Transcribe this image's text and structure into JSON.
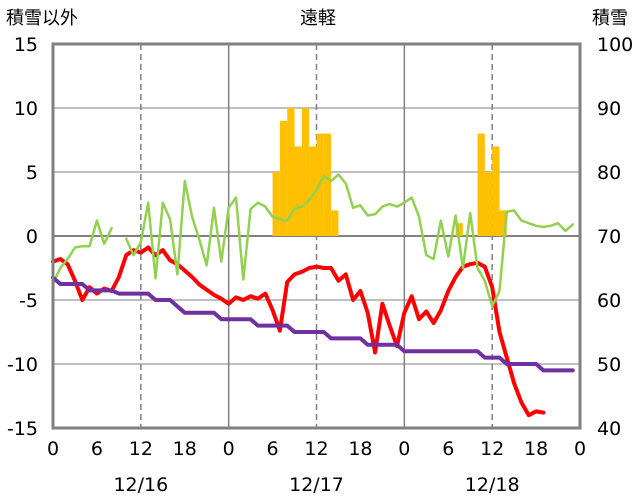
{
  "labels": {
    "left_axis_title": "積雪以外",
    "station": "遠軽",
    "right_axis_title": "積雪"
  },
  "chart_data": {
    "type": "line",
    "x_unit": "hour",
    "x_tick_labels": [
      "0",
      "6",
      "12",
      "18",
      "0",
      "6",
      "12",
      "18",
      "0",
      "6",
      "12",
      "18",
      "0"
    ],
    "day_labels": [
      "12/16",
      "12/17",
      "12/18"
    ],
    "y_left_ticks": [
      "15",
      "10",
      "5",
      "0",
      "-5",
      "-10",
      "-15"
    ],
    "y_right_ticks": [
      "100",
      "90",
      "80",
      "70",
      "60",
      "50",
      "40"
    ],
    "ylim_left": [
      -15,
      15
    ],
    "ylim_right": [
      40,
      100
    ],
    "xlim": [
      0,
      72
    ],
    "colors": {
      "precip": "#ffc000",
      "temp": "#ff0000",
      "wind": "#92d050",
      "snow": "#7030a0",
      "frame": "#808080",
      "grid": "#808080"
    },
    "series": [
      {
        "key": "temp",
        "axis": "left",
        "values": [
          [
            0,
            -2.0
          ],
          [
            1,
            -1.8
          ],
          [
            2,
            -2.2
          ],
          [
            3,
            -3.5
          ],
          [
            4,
            -5.0
          ],
          [
            5,
            -4.0
          ],
          [
            6,
            -4.5
          ],
          [
            7,
            -4.1
          ],
          [
            8,
            -4.3
          ],
          [
            9,
            -3.2
          ],
          [
            10,
            -1.5
          ],
          [
            11,
            -1.1
          ],
          [
            12,
            -1.3
          ],
          [
            13,
            -0.9
          ],
          [
            14,
            -1.5
          ],
          [
            15,
            -1.1
          ],
          [
            16,
            -1.9
          ],
          [
            17,
            -2.2
          ],
          [
            18,
            -2.7
          ],
          [
            19,
            -3.2
          ],
          [
            20,
            -3.8
          ],
          [
            21,
            -4.2
          ],
          [
            22,
            -4.6
          ],
          [
            23,
            -4.9
          ],
          [
            24,
            -5.3
          ],
          [
            25,
            -4.8
          ],
          [
            26,
            -5.0
          ],
          [
            27,
            -4.7
          ],
          [
            28,
            -4.9
          ],
          [
            29,
            -4.5
          ],
          [
            30,
            -5.8
          ],
          [
            31,
            -7.4
          ],
          [
            32,
            -3.6
          ],
          [
            33,
            -3.0
          ],
          [
            34,
            -2.8
          ],
          [
            35,
            -2.5
          ],
          [
            36,
            -2.4
          ],
          [
            37,
            -2.5
          ],
          [
            38,
            -2.5
          ],
          [
            39,
            -3.5
          ],
          [
            40,
            -3.0
          ],
          [
            41,
            -5.0
          ],
          [
            42,
            -4.3
          ],
          [
            43,
            -6.0
          ],
          [
            44,
            -9.1
          ],
          [
            45,
            -5.3
          ],
          [
            46,
            -7.0
          ],
          [
            47,
            -8.6
          ],
          [
            48,
            -6.0
          ],
          [
            49,
            -4.7
          ],
          [
            50,
            -6.5
          ],
          [
            51,
            -5.9
          ],
          [
            52,
            -6.8
          ],
          [
            53,
            -5.8
          ],
          [
            54,
            -4.3
          ],
          [
            55,
            -3.2
          ],
          [
            56,
            -2.4
          ],
          [
            57,
            -2.2
          ],
          [
            58,
            -2.1
          ],
          [
            59,
            -2.4
          ],
          [
            60,
            -4.0
          ],
          [
            61,
            -7.5
          ],
          [
            62,
            -9.5
          ],
          [
            63,
            -11.5
          ],
          [
            64,
            -13.0
          ],
          [
            65,
            -14.0
          ],
          [
            66,
            -13.7
          ],
          [
            67,
            -13.8
          ]
        ]
      },
      {
        "key": "wind",
        "axis": "left",
        "values": [
          [
            0,
            -3.7
          ],
          [
            1,
            -2.5
          ],
          [
            2,
            -1.8
          ],
          [
            3,
            -0.9
          ],
          [
            4,
            -0.8
          ],
          [
            5,
            -0.8
          ],
          [
            6,
            1.2
          ],
          [
            7,
            -0.6
          ],
          [
            8,
            0.6
          ],
          [
            null,
            null
          ],
          [
            10,
            -0.2
          ],
          [
            11,
            -1.5
          ],
          [
            12,
            -0.5
          ],
          [
            13,
            2.6
          ],
          [
            14,
            -3.3
          ],
          [
            15,
            2.6
          ],
          [
            16,
            1.3
          ],
          [
            17,
            -3.0
          ],
          [
            18,
            4.3
          ],
          [
            19,
            1.5
          ],
          [
            20,
            -0.3
          ],
          [
            21,
            -2.3
          ],
          [
            22,
            2.2
          ],
          [
            23,
            -2.0
          ],
          [
            24,
            2.2
          ],
          [
            25,
            3.0
          ],
          [
            26,
            -3.4
          ],
          [
            27,
            2.1
          ],
          [
            28,
            2.6
          ],
          [
            29,
            2.3
          ],
          [
            30,
            1.5
          ],
          [
            31,
            1.3
          ],
          [
            32,
            1.2
          ],
          [
            33,
            2.1
          ],
          [
            34,
            2.3
          ],
          [
            35,
            2.8
          ],
          [
            36,
            3.6
          ],
          [
            37,
            4.7
          ],
          [
            38,
            4.3
          ],
          [
            39,
            4.8
          ],
          [
            40,
            4.1
          ],
          [
            41,
            2.2
          ],
          [
            42,
            2.4
          ],
          [
            43,
            1.6
          ],
          [
            44,
            1.7
          ],
          [
            45,
            2.3
          ],
          [
            46,
            2.5
          ],
          [
            47,
            2.3
          ],
          [
            48,
            2.6
          ],
          [
            49,
            3.0
          ],
          [
            50,
            1.5
          ],
          [
            51,
            -1.5
          ],
          [
            52,
            -1.8
          ],
          [
            53,
            1.2
          ],
          [
            54,
            -1.6
          ],
          [
            55,
            1.6
          ],
          [
            56,
            -2.5
          ],
          [
            57,
            1.8
          ],
          [
            58,
            -2.5
          ],
          [
            59,
            -3.5
          ],
          [
            60,
            -5.5
          ],
          [
            61,
            -4.3
          ],
          [
            62,
            1.9
          ],
          [
            63,
            2.0
          ],
          [
            64,
            1.2
          ],
          [
            65,
            1.0
          ],
          [
            66,
            0.8
          ],
          [
            67,
            0.7
          ],
          [
            68,
            0.8
          ],
          [
            69,
            1.0
          ],
          [
            70,
            0.4
          ],
          [
            71,
            0.9
          ]
        ]
      },
      {
        "key": "snow",
        "axis": "right",
        "values": [
          [
            0,
            63.5
          ],
          [
            1,
            62.5
          ],
          [
            4,
            62.5
          ],
          [
            5,
            61.5
          ],
          [
            8,
            61.5
          ],
          [
            9,
            61.0
          ],
          [
            13,
            61.0
          ],
          [
            14,
            60.0
          ],
          [
            16,
            60.0
          ],
          [
            17,
            59.0
          ],
          [
            18,
            58.0
          ],
          [
            22,
            58.0
          ],
          [
            23,
            57.0
          ],
          [
            27,
            57.0
          ],
          [
            28,
            56.0
          ],
          [
            32,
            56.0
          ],
          [
            33,
            55.0
          ],
          [
            37,
            55.0
          ],
          [
            38,
            54.0
          ],
          [
            42,
            54.0
          ],
          [
            43,
            53.0
          ],
          [
            47,
            53.0
          ],
          [
            48,
            52.0
          ],
          [
            58,
            52.0
          ],
          [
            59,
            51.0
          ],
          [
            61,
            51.0
          ],
          [
            62,
            50.0
          ],
          [
            66,
            50.0
          ],
          [
            67,
            49.0
          ],
          [
            71,
            49.0
          ]
        ]
      }
    ],
    "precip": {
      "axis": "left",
      "bars": [
        [
          31,
          5.0
        ],
        [
          32,
          9.0
        ],
        [
          33,
          10.0
        ],
        [
          34,
          7.0
        ],
        [
          35,
          10.0
        ],
        [
          36,
          7.0
        ],
        [
          37,
          8.0
        ],
        [
          38,
          8.0
        ],
        [
          39,
          2.0
        ],
        [
          56,
          1.0
        ],
        [
          59,
          8.0
        ],
        [
          60,
          5.0
        ],
        [
          61,
          7.0
        ],
        [
          62,
          2.0
        ]
      ]
    }
  }
}
